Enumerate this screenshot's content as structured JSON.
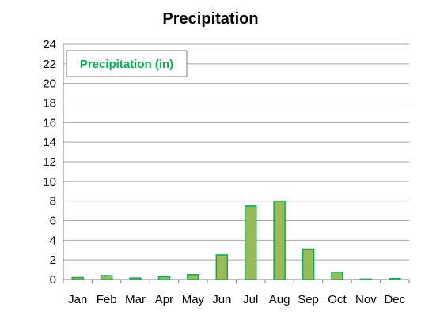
{
  "chart_data": {
    "type": "bar",
    "title": "Precipitation",
    "xlabel": "",
    "ylabel": "",
    "categories": [
      "Jan",
      "Feb",
      "Mar",
      "Apr",
      "May",
      "Jun",
      "Jul",
      "Aug",
      "Sep",
      "Oct",
      "Nov",
      "Dec"
    ],
    "series": [
      {
        "name": "Precipitation (in)",
        "values": [
          0.2,
          0.4,
          0.15,
          0.3,
          0.5,
          2.5,
          7.5,
          8.0,
          3.1,
          0.75,
          0.05,
          0.1
        ],
        "color": "#9BBB59",
        "border_color": "#00B050"
      }
    ],
    "ylim": [
      0,
      24
    ],
    "yticks": [
      0,
      2,
      4,
      6,
      8,
      10,
      12,
      14,
      16,
      18,
      20,
      22,
      24
    ],
    "grid": true,
    "legend_position": "top-left",
    "legend_text_color": "#00B050",
    "gridline_color": "#A6A6A6",
    "axis_color": "#808080"
  }
}
